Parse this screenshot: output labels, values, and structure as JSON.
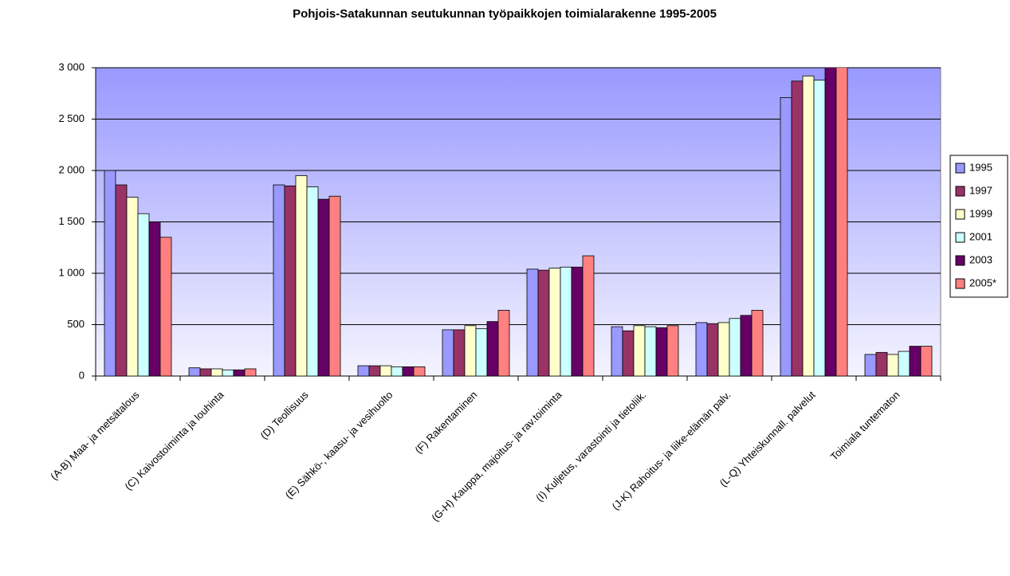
{
  "chart_data": {
    "type": "bar",
    "title": "Pohjois-Satakunnan seutukunnan työpaikkojen toimialarakenne 1995-2005",
    "categories": [
      "(A-B) Maa- ja metsätalous",
      "(C) Kaivostoiminta ja louhinta",
      "(D) Teollisuus",
      "(E) Sähkö-, kaasu- ja vesihuolto",
      "(F) Rakentaminen",
      "(G-H) Kauppa, majoitus- ja rav.toiminta",
      "(I) Kuljetus, varastointi ja tietoliik.",
      "(J-K) Rahoitus- ja liike-elämän palv.",
      "(L-Q) Yhteiskunnall. palvelut",
      "Toimiala tuntematon"
    ],
    "series": [
      {
        "name": "1995",
        "color": "#9999ff",
        "values": [
          2000,
          80,
          1860,
          100,
          450,
          1040,
          480,
          520,
          2710,
          210
        ]
      },
      {
        "name": "1997",
        "color": "#993366",
        "values": [
          1860,
          70,
          1850,
          100,
          450,
          1030,
          440,
          510,
          2870,
          230
        ]
      },
      {
        "name": "1999",
        "color": "#ffffcc",
        "values": [
          1740,
          70,
          1950,
          100,
          490,
          1050,
          490,
          520,
          2920,
          210
        ]
      },
      {
        "name": "2001",
        "color": "#ccffff",
        "values": [
          1580,
          60,
          1840,
          90,
          460,
          1060,
          480,
          560,
          2880,
          240
        ]
      },
      {
        "name": "2003",
        "color": "#660066",
        "values": [
          1500,
          60,
          1720,
          90,
          530,
          1060,
          470,
          590,
          3040,
          290
        ]
      },
      {
        "name": "2005*",
        "color": "#ff8080",
        "values": [
          1350,
          70,
          1750,
          90,
          640,
          1170,
          490,
          640,
          3070,
          290
        ]
      }
    ],
    "ylim": [
      0,
      3000
    ],
    "yticks": [
      0,
      500,
      {
        "value": 1000,
        "label": "1 000"
      },
      {
        "value": 1500,
        "label": "1 500"
      },
      {
        "value": 2000,
        "label": "2 000"
      },
      {
        "value": 2500,
        "label": "2 500"
      },
      {
        "value": 3000,
        "label": "3 000"
      }
    ],
    "grid": true,
    "legend": "right"
  }
}
